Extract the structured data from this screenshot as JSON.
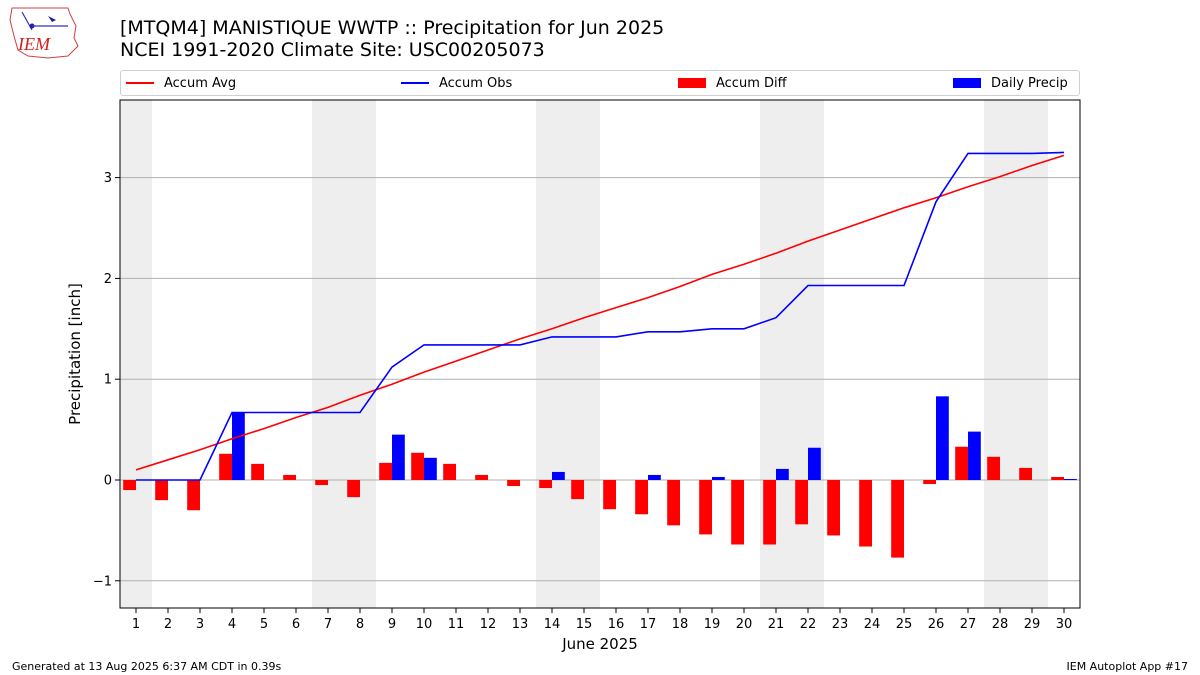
{
  "header": {
    "title_line1": "[MTQM4] MANISTIQUE WWTP :: Precipitation for Jun 2025",
    "title_line2": "NCEI 1991-2020 Climate Site: USC00205073",
    "logo_text": "IEM"
  },
  "legend": {
    "items": [
      {
        "label": "Accum Avg",
        "color": "#ff0000",
        "kind": "line"
      },
      {
        "label": "Accum Obs",
        "color": "#0000ff",
        "kind": "line"
      },
      {
        "label": "Accum Diff",
        "color": "#ff0000",
        "kind": "patch"
      },
      {
        "label": "Daily Precip",
        "color": "#0000ff",
        "kind": "patch"
      }
    ]
  },
  "footer": {
    "left": "Generated at 13 Aug 2025 6:37 AM CDT in 0.39s",
    "right": "IEM Autoplot App #17"
  },
  "chart_data": {
    "type": "bar",
    "title": "[MTQM4] MANISTIQUE WWTP :: Precipitation for Jun 2025",
    "subtitle": "NCEI 1991-2020 Climate Site: USC00205073",
    "xlabel": "June 2025",
    "ylabel": "Precipitation [inch]",
    "x": [
      1,
      2,
      3,
      4,
      5,
      6,
      7,
      8,
      9,
      10,
      11,
      12,
      13,
      14,
      15,
      16,
      17,
      18,
      19,
      20,
      21,
      22,
      23,
      24,
      25,
      26,
      27,
      28,
      29,
      30
    ],
    "ylim": [
      -1.27,
      3.77
    ],
    "yticks": [
      -1,
      0,
      1,
      2,
      3
    ],
    "ytick_labels": [
      "−1",
      "0",
      "1",
      "2",
      "3"
    ],
    "grid": "horizontal",
    "legend_position": "top",
    "weekend_shading": [
      [
        1,
        1
      ],
      [
        7,
        8
      ],
      [
        14,
        15
      ],
      [
        21,
        22
      ],
      [
        28,
        29
      ]
    ],
    "shade_color": "#eeeeee",
    "series": [
      {
        "name": "Accum Avg",
        "type": "line",
        "color": "#ff0000",
        "values": [
          0.1,
          0.2,
          0.3,
          0.41,
          0.51,
          0.62,
          0.72,
          0.84,
          0.95,
          1.07,
          1.18,
          1.29,
          1.4,
          1.5,
          1.61,
          1.71,
          1.81,
          1.92,
          2.04,
          2.14,
          2.25,
          2.37,
          2.48,
          2.59,
          2.7,
          2.8,
          2.91,
          3.01,
          3.12,
          3.22
        ]
      },
      {
        "name": "Accum Obs",
        "type": "line",
        "color": "#0000ff",
        "values": [
          0.0,
          0.0,
          0.0,
          0.67,
          0.67,
          0.67,
          0.67,
          0.67,
          1.12,
          1.34,
          1.34,
          1.34,
          1.34,
          1.42,
          1.42,
          1.42,
          1.47,
          1.47,
          1.5,
          1.5,
          1.61,
          1.93,
          1.93,
          1.93,
          1.93,
          2.76,
          3.24,
          3.24,
          3.24,
          3.25
        ]
      },
      {
        "name": "Accum Diff",
        "type": "bar",
        "color": "#ff0000",
        "values": [
          -0.1,
          -0.2,
          -0.3,
          0.26,
          0.16,
          0.05,
          -0.05,
          -0.17,
          0.17,
          0.27,
          0.16,
          0.05,
          -0.06,
          -0.08,
          -0.19,
          -0.29,
          -0.34,
          -0.45,
          -0.54,
          -0.64,
          -0.64,
          -0.44,
          -0.55,
          -0.66,
          -0.77,
          -0.04,
          0.33,
          0.23,
          0.12,
          0.03
        ]
      },
      {
        "name": "Daily Precip",
        "type": "bar",
        "color": "#0000ff",
        "values": [
          0.0,
          0.0,
          0.0,
          0.67,
          0.0,
          0.0,
          0.0,
          0.0,
          0.45,
          0.22,
          0.0,
          0.0,
          0.0,
          0.08,
          0.0,
          0.0,
          0.05,
          0.0,
          0.03,
          0.0,
          0.11,
          0.32,
          0.0,
          0.0,
          0.0,
          0.83,
          0.48,
          0.0,
          0.0,
          0.01
        ]
      }
    ]
  }
}
